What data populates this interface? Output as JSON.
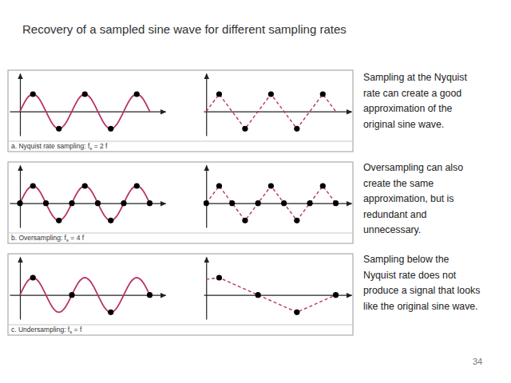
{
  "title": "Recovery of a sampled sine wave for different sampling rates",
  "page_number": 34,
  "annotations": [
    {
      "lines": [
        "Sampling at the Nyquist",
        "rate can create a good",
        "approximation of the",
        "original sine wave."
      ]
    },
    {
      "lines": [
        "Oversampling can also",
        "create the same",
        "approximation, but is",
        "redundant and",
        "unnecessary."
      ]
    },
    {
      "lines": [
        "Sampling below the",
        "Nyquist rate does not",
        "produce a signal that looks",
        "like the original sine wave."
      ]
    }
  ],
  "chart_data": [
    {
      "type": "line",
      "caption": "a. Nyquist rate sampling: fs = 2 f",
      "xlim": [
        -0.2,
        2.8
      ],
      "ylim": [
        -1.4,
        2.2
      ],
      "xticks": [],
      "yticks": [],
      "tick_labels": false,
      "series": [
        {
          "type": "line",
          "color": "#b8336a",
          "line_style": "solid",
          "x": [
            0,
            0.125,
            0.25,
            0.375,
            0.5,
            0.625,
            0.75,
            0.875,
            1,
            1.125,
            1.25,
            1.375,
            1.5,
            1.625,
            1.75,
            1.875,
            2,
            2.125,
            2.25,
            2.375,
            2.5
          ],
          "values": [
            0,
            0.71,
            1,
            0.71,
            0,
            -0.71,
            -1,
            -0.71,
            0,
            0.71,
            1,
            0.71,
            0,
            -0.71,
            -1,
            -0.71,
            0,
            0.71,
            1,
            0.71,
            0
          ]
        },
        {
          "type": "scatter",
          "color": "#000000",
          "marker": "circle",
          "x": [
            0.25,
            0.75,
            1.25,
            1.75,
            2.25
          ],
          "values": [
            1,
            -1,
            1,
            -1,
            1
          ]
        }
      ]
    },
    {
      "type": "line",
      "xlim": [
        -0.05,
        2.8
      ],
      "ylim": [
        -1.4,
        2.2
      ],
      "xticks": [],
      "yticks": [],
      "tick_labels": false,
      "series": [
        {
          "type": "line",
          "color": "#b8336a",
          "line_style": "dashed",
          "x": [
            0,
            0.25,
            0.75,
            1.25,
            1.75,
            2.25,
            2.5
          ],
          "values": [
            0,
            1,
            -1,
            1,
            -1,
            1,
            0
          ]
        },
        {
          "type": "scatter",
          "color": "#000000",
          "marker": "circle",
          "x": [
            0.25,
            0.75,
            1.25,
            1.75,
            2.25
          ],
          "values": [
            1,
            -1,
            1,
            -1,
            1
          ]
        }
      ]
    },
    {
      "type": "line",
      "caption": "b. Oversampling: fs = 4 f",
      "xlim": [
        -0.2,
        2.8
      ],
      "ylim": [
        -1.4,
        2.2
      ],
      "xticks": [],
      "yticks": [],
      "tick_labels": false,
      "series": [
        {
          "type": "line",
          "color": "#b8336a",
          "line_style": "solid",
          "x": [
            0,
            0.125,
            0.25,
            0.375,
            0.5,
            0.625,
            0.75,
            0.875,
            1,
            1.125,
            1.25,
            1.375,
            1.5,
            1.625,
            1.75,
            1.875,
            2,
            2.125,
            2.25,
            2.375,
            2.5
          ],
          "values": [
            0,
            0.71,
            1,
            0.71,
            0,
            -0.71,
            -1,
            -0.71,
            0,
            0.71,
            1,
            0.71,
            0,
            -0.71,
            -1,
            -0.71,
            0,
            0.71,
            1,
            0.71,
            0
          ]
        },
        {
          "type": "scatter",
          "color": "#000000",
          "marker": "circle",
          "x": [
            0,
            0.25,
            0.5,
            0.75,
            1,
            1.25,
            1.5,
            1.75,
            2,
            2.25,
            2.5
          ],
          "values": [
            0,
            1,
            0,
            -1,
            0,
            1,
            0,
            -1,
            0,
            1,
            0
          ]
        }
      ]
    },
    {
      "type": "line",
      "xlim": [
        -0.05,
        2.8
      ],
      "ylim": [
        -1.4,
        2.2
      ],
      "xticks": [],
      "yticks": [],
      "tick_labels": false,
      "series": [
        {
          "type": "line",
          "color": "#b8336a",
          "line_style": "dashed",
          "x": [
            0,
            0.25,
            0.5,
            0.75,
            1,
            1.25,
            1.5,
            1.75,
            2,
            2.25,
            2.5
          ],
          "values": [
            0,
            1,
            0,
            -1,
            0,
            1,
            0,
            -1,
            0,
            1,
            0
          ]
        },
        {
          "type": "scatter",
          "color": "#000000",
          "marker": "circle",
          "x": [
            0,
            0.25,
            0.5,
            0.75,
            1,
            1.25,
            1.5,
            1.75,
            2,
            2.25,
            2.5
          ],
          "values": [
            0,
            1,
            0,
            -1,
            0,
            1,
            0,
            -1,
            0,
            1,
            0
          ]
        }
      ]
    },
    {
      "type": "line",
      "caption": "c. Undersampling: fs = f",
      "xlim": [
        -0.2,
        2.8
      ],
      "ylim": [
        -1.4,
        2.2
      ],
      "xticks": [],
      "yticks": [],
      "tick_labels": false,
      "series": [
        {
          "type": "line",
          "color": "#b8336a",
          "line_style": "solid",
          "x": [
            0,
            0.125,
            0.25,
            0.375,
            0.5,
            0.625,
            0.75,
            0.875,
            1,
            1.125,
            1.25,
            1.375,
            1.5,
            1.625,
            1.75,
            1.875,
            2,
            2.125,
            2.25,
            2.375,
            2.5
          ],
          "values": [
            0,
            0.71,
            1,
            0.71,
            0,
            -0.71,
            -1,
            -0.71,
            0,
            0.71,
            1,
            0.71,
            0,
            -0.71,
            -1,
            -0.71,
            0,
            0.71,
            1,
            0.71,
            0
          ]
        },
        {
          "type": "scatter",
          "color": "#000000",
          "marker": "circle",
          "x": [
            0.25,
            1,
            1.75,
            2.5
          ],
          "values": [
            1,
            0,
            -1,
            0
          ]
        }
      ]
    },
    {
      "type": "line",
      "xlim": [
        -0.05,
        2.8
      ],
      "ylim": [
        -1.4,
        2.2
      ],
      "xticks": [],
      "yticks": [],
      "tick_labels": false,
      "series": [
        {
          "type": "line",
          "color": "#b8336a",
          "line_style": "dashed",
          "x": [
            0,
            0.25,
            1,
            1.75,
            2.5
          ],
          "values": [
            0.9,
            1,
            0,
            -1,
            0
          ]
        },
        {
          "type": "scatter",
          "color": "#000000",
          "marker": "circle",
          "x": [
            0.25,
            1,
            1.75,
            2.5
          ],
          "values": [
            1,
            0,
            -1,
            0
          ]
        }
      ]
    }
  ]
}
